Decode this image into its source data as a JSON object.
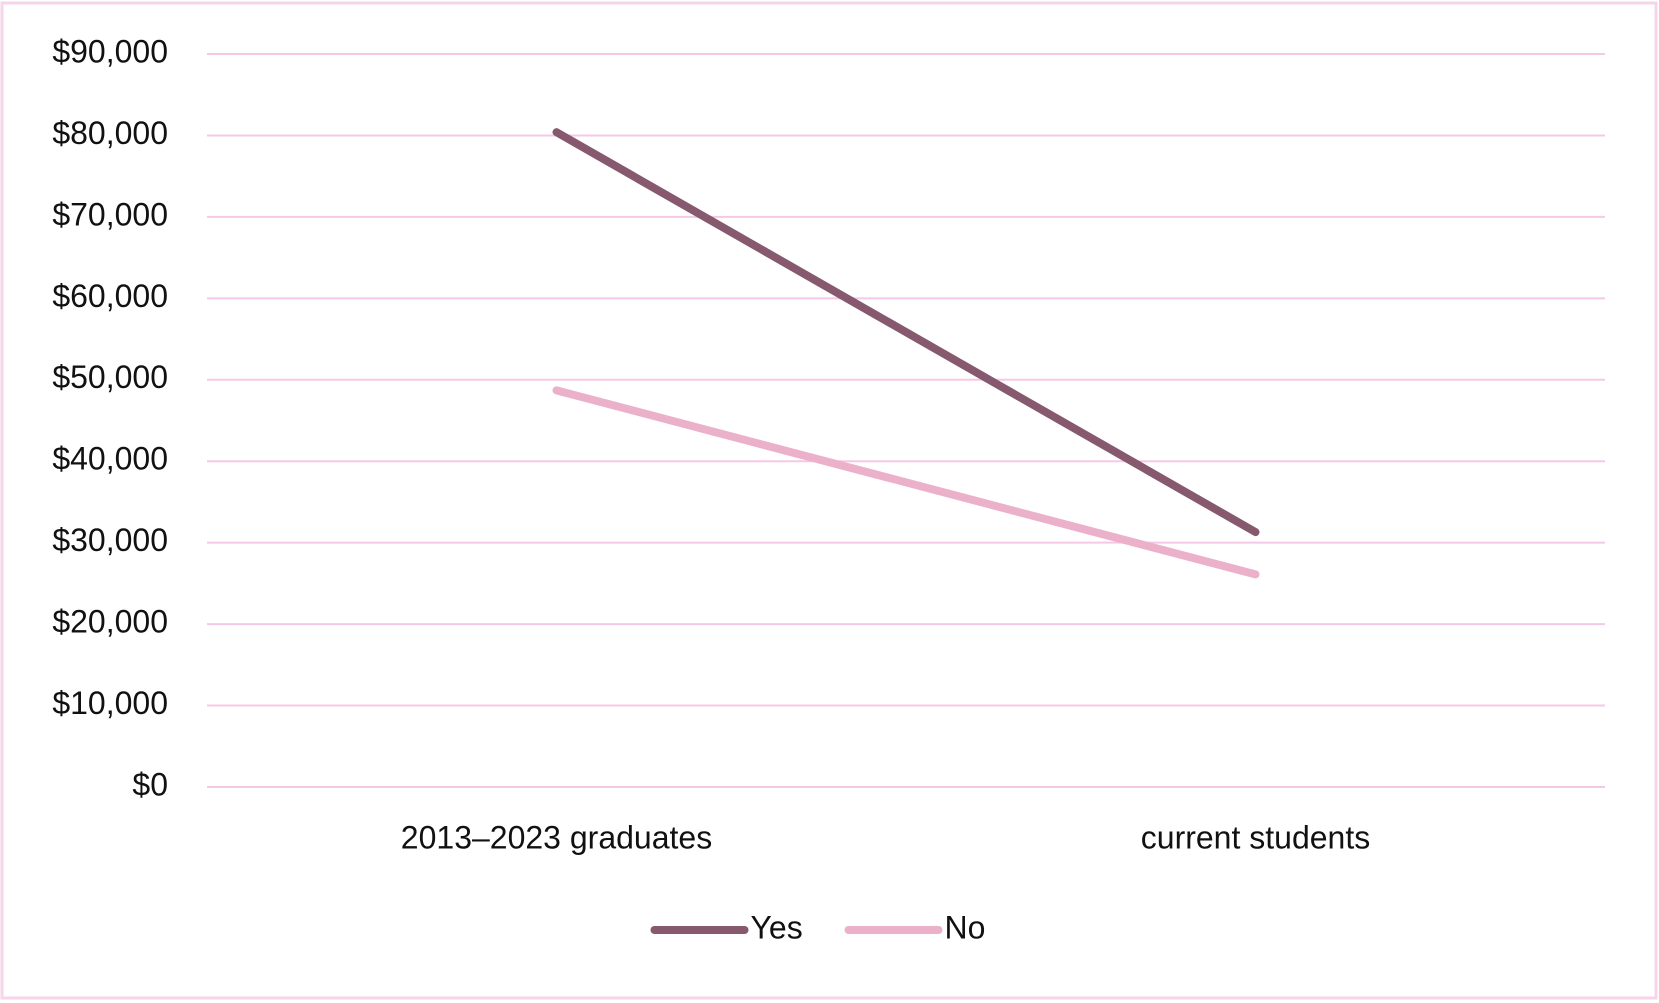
{
  "chart_data": {
    "type": "line",
    "categories": [
      "2013–2023 graduates",
      "current students"
    ],
    "series": [
      {
        "name": "Yes",
        "color": "#86596f",
        "values": [
          80400,
          31300
        ]
      },
      {
        "name": "No",
        "color": "#ebb1ca",
        "values": [
          48700,
          26100
        ]
      }
    ],
    "ylim": [
      0,
      90000
    ],
    "yticks": [
      {
        "value": 0,
        "label": "$0"
      },
      {
        "value": 10000,
        "label": "$10,000"
      },
      {
        "value": 20000,
        "label": "$20,000"
      },
      {
        "value": 30000,
        "label": "$30,000"
      },
      {
        "value": 40000,
        "label": "$40,000"
      },
      {
        "value": 50000,
        "label": "$50,000"
      },
      {
        "value": 60000,
        "label": "$60,000"
      },
      {
        "value": 70000,
        "label": "$70,000"
      },
      {
        "value": 80000,
        "label": "$80,000"
      },
      {
        "value": 90000,
        "label": "$90,000"
      }
    ],
    "grid": true,
    "legend": "bottom"
  }
}
